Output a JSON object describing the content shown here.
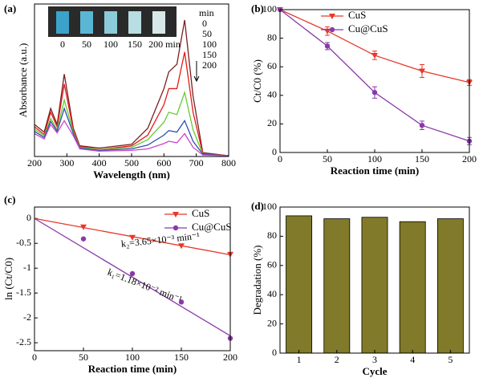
{
  "chart_data": [
    {
      "type": "line",
      "panel_label": "(a)",
      "xlabel": "Wavelength (nm)",
      "ylabel": "Absorbance (a.u.)",
      "x": [
        200,
        230,
        250,
        270,
        292,
        320,
        340,
        400,
        500,
        550,
        600,
        615,
        640,
        664,
        690,
        720,
        800
      ],
      "xlim": [
        200,
        800
      ],
      "xticks": [
        200,
        300,
        400,
        500,
        600,
        700,
        800
      ],
      "ylim": [
        0,
        2
      ],
      "legend_title": "min",
      "legend_loc": "upper right",
      "inset_labels": [
        "0",
        "50",
        "100",
        "150",
        "200 min"
      ],
      "series": [
        {
          "name": "0",
          "color": "#7b1e1e",
          "values": [
            0.42,
            0.32,
            0.63,
            0.42,
            1.08,
            0.37,
            0.14,
            0.11,
            0.16,
            0.37,
            0.89,
            1.11,
            1.21,
            1.79,
            0.79,
            0.05,
            0.01
          ]
        },
        {
          "name": "50",
          "color": "#e31a1c",
          "values": [
            0.39,
            0.29,
            0.58,
            0.39,
            0.95,
            0.35,
            0.13,
            0.09,
            0.14,
            0.28,
            0.68,
            0.89,
            0.89,
            1.37,
            0.58,
            0.04,
            0.01
          ]
        },
        {
          "name": "100",
          "color": "#66cc33",
          "values": [
            0.36,
            0.27,
            0.5,
            0.35,
            0.74,
            0.32,
            0.12,
            0.09,
            0.12,
            0.22,
            0.45,
            0.58,
            0.55,
            0.84,
            0.35,
            0.03,
            0.01
          ]
        },
        {
          "name": "150",
          "color": "#3050b0",
          "values": [
            0.33,
            0.25,
            0.46,
            0.33,
            0.63,
            0.3,
            0.11,
            0.08,
            0.1,
            0.15,
            0.28,
            0.34,
            0.32,
            0.47,
            0.2,
            0.03,
            0.01
          ]
        },
        {
          "name": "200",
          "color": "#cc44cc",
          "values": [
            0.3,
            0.23,
            0.42,
            0.31,
            0.47,
            0.27,
            0.1,
            0.07,
            0.08,
            0.1,
            0.17,
            0.2,
            0.18,
            0.3,
            0.12,
            0.02,
            0.01
          ]
        }
      ]
    },
    {
      "type": "line",
      "panel_label": "(b)",
      "xlabel": "Reaction time (min)",
      "ylabel": "Ct/C0 (%)",
      "x": [
        0,
        50,
        100,
        150,
        200
      ],
      "xlim": [
        0,
        200
      ],
      "xticks": [
        0,
        50,
        100,
        150,
        200
      ],
      "ylim": [
        0,
        100
      ],
      "yticks": [
        0,
        20,
        40,
        60,
        80,
        100
      ],
      "legend_loc": "upper right",
      "series": [
        {
          "name": "CuS",
          "color": "#e8382a",
          "marker": "triangle-down",
          "values": [
            100,
            85,
            68,
            57,
            49
          ],
          "errors": [
            0,
            3,
            3,
            4.5,
            2
          ]
        },
        {
          "name": "Cu@CuS",
          "color": "#8a3aa8",
          "marker": "circle",
          "values": [
            100,
            74.5,
            42,
            19,
            8
          ],
          "errors": [
            0,
            2.5,
            4,
            3,
            2.5
          ]
        }
      ]
    },
    {
      "type": "scatter",
      "panel_label": "(c)",
      "xlabel": "Reaction time (min)",
      "ylabel": "ln (Ct/C0)",
      "x": [
        50,
        100,
        150,
        200
      ],
      "xlim": [
        0,
        200
      ],
      "xticks": [
        0,
        50,
        100,
        150,
        200
      ],
      "ylim": [
        -2.66,
        0.23
      ],
      "yticks": [
        0,
        -0.5,
        -1,
        -1.5,
        -2,
        -2.5
      ],
      "legend_loc": "upper right",
      "annotations": [
        "k₂=3.65×10⁻³ min⁻¹",
        "k₁=1.18×10⁻² min⁻¹"
      ],
      "series": [
        {
          "name": "CuS",
          "color": "#e8382a",
          "marker": "triangle-down",
          "values": [
            -0.17,
            -0.38,
            -0.55,
            -0.72
          ],
          "line_x": [
            0,
            200
          ],
          "line_values": [
            0,
            -0.73
          ]
        },
        {
          "name": "Cu@CuS",
          "color": "#8a3aa8",
          "marker": "circle",
          "values": [
            -0.41,
            -1.11,
            -1.68,
            -2.41
          ],
          "line_x": [
            0,
            200
          ],
          "line_values": [
            0,
            -2.36
          ]
        }
      ]
    },
    {
      "type": "bar",
      "panel_label": "(d)",
      "xlabel": "Cycle",
      "ylabel": "Degradation (%)",
      "categories": [
        "1",
        "2",
        "3",
        "4",
        "5"
      ],
      "values": [
        94,
        92,
        93,
        90,
        92
      ],
      "color": "#807a2a",
      "ylim": [
        0,
        100
      ],
      "yticks": [
        0,
        20,
        40,
        60,
        80,
        100
      ]
    }
  ]
}
